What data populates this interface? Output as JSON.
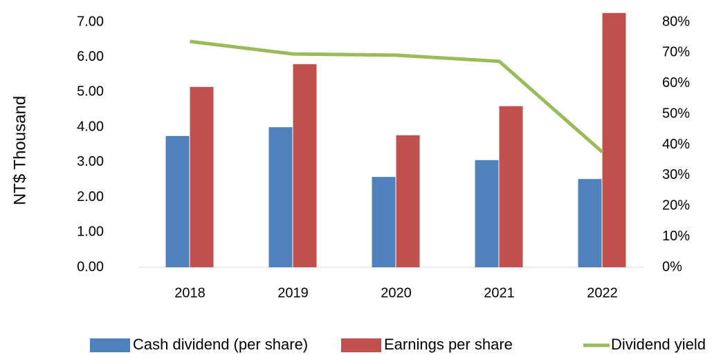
{
  "chart_data": {
    "type": "bar",
    "y_label": "NT$ Thousand",
    "categories": [
      "2018",
      "2019",
      "2020",
      "2021",
      "2022"
    ],
    "series": [
      {
        "name": "Cash dividend (per share)",
        "color": "#4f81bd",
        "values": [
          3.75,
          4.0,
          2.58,
          3.06,
          2.52
        ]
      },
      {
        "name": "Earnings per share",
        "color": "#c0504d",
        "values": [
          5.15,
          5.8,
          3.77,
          4.6,
          7.26
        ]
      },
      {
        "name": "Dividend yield",
        "color": "#9bbb59",
        "type": "line",
        "axis": "y2",
        "values": [
          73.7,
          69.6,
          69.2,
          67.2,
          37.6
        ]
      }
    ],
    "ylim": [
      0,
      7
    ],
    "yticks": [
      {
        "value": 0,
        "label": "0.00"
      },
      {
        "value": 1,
        "label": "1.00"
      },
      {
        "value": 2,
        "label": "2.00"
      },
      {
        "value": 3,
        "label": "3.00"
      },
      {
        "value": 4,
        "label": "4.00"
      },
      {
        "value": 5,
        "label": "5.00"
      },
      {
        "value": 6,
        "label": "6.00"
      },
      {
        "value": 7,
        "label": "7.00"
      }
    ],
    "y2lim": [
      0,
      80
    ],
    "y2ticks": [
      {
        "value": 0,
        "label": "0%"
      },
      {
        "value": 10,
        "label": "10%"
      },
      {
        "value": 20,
        "label": "20%"
      },
      {
        "value": 30,
        "label": "30%"
      },
      {
        "value": 40,
        "label": "40%"
      },
      {
        "value": 50,
        "label": "50%"
      },
      {
        "value": 60,
        "label": "60%"
      },
      {
        "value": 70,
        "label": "70%"
      },
      {
        "value": 80,
        "label": "80%"
      }
    ],
    "grid": false,
    "legend": "bottom"
  }
}
